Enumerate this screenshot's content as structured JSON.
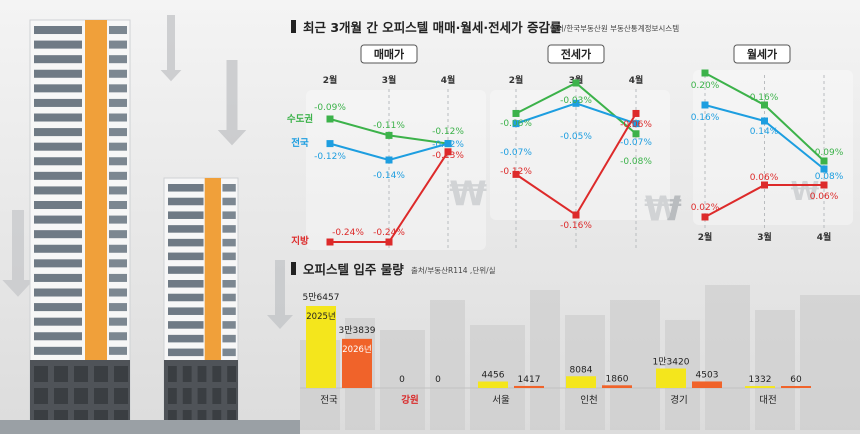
{
  "sections": {
    "price_title": "최근 3개월 간 오피스텔 매매·월세·전세가 증감률",
    "price_source": "출처/한국부동산원 부동산통계정보시스템",
    "supply_title": "오피스텔 입주 물량",
    "supply_source": "출처/부동산R114 ,단위/실"
  },
  "colors": {
    "metro": "#3cb24a",
    "national": "#1d9ee0",
    "local": "#dd2a2a",
    "bar2025": "#f4e61c",
    "bar2026": "#f0632a",
    "highlight_region": "#d92b2b"
  },
  "chart_data": [
    {
      "type": "line",
      "title": "매매가",
      "categories": [
        "2월",
        "3월",
        "4월"
      ],
      "series": [
        {
          "name": "수도권",
          "values": [
            -0.09,
            -0.11,
            -0.12
          ],
          "labels": [
            "-0.09%",
            "-0.11%",
            "-0.12%"
          ]
        },
        {
          "name": "전국",
          "values": [
            -0.12,
            -0.14,
            -0.12
          ],
          "labels": [
            "-0.12%",
            "-0.14%",
            "-0.12%"
          ]
        },
        {
          "name": "지방",
          "values": [
            -0.24,
            -0.24,
            -0.13
          ],
          "labels": [
            "-0.24%",
            "-0.24%",
            "-0.13%"
          ]
        }
      ]
    },
    {
      "type": "line",
      "title": "전세가",
      "categories": [
        "2월",
        "3월",
        "4월"
      ],
      "series": [
        {
          "name": "수도권",
          "values": [
            -0.06,
            -0.03,
            -0.08
          ],
          "labels": [
            "-0.06%",
            "-0.03%",
            "-0.08%"
          ]
        },
        {
          "name": "전국",
          "values": [
            -0.07,
            -0.05,
            -0.07
          ],
          "labels": [
            "-0.07%",
            "-0.05%",
            "-0.07%"
          ]
        },
        {
          "name": "지방",
          "values": [
            -0.12,
            -0.16,
            -0.06
          ],
          "labels": [
            "-0.12%",
            "-0.16%",
            "-0.06%"
          ]
        }
      ]
    },
    {
      "type": "line",
      "title": "월세가",
      "categories": [
        "2월",
        "3월",
        "4월"
      ],
      "series": [
        {
          "name": "수도권",
          "values": [
            0.2,
            0.16,
            0.09
          ],
          "labels": [
            "0.20%",
            "0.16%",
            "0.09%"
          ]
        },
        {
          "name": "전국",
          "values": [
            0.16,
            0.14,
            0.08
          ],
          "labels": [
            "0.16%",
            "0.14%",
            "0.08%"
          ]
        },
        {
          "name": "지방",
          "values": [
            0.02,
            0.06,
            0.06
          ],
          "labels": [
            "0.02%",
            "0.06%",
            "0.06%"
          ]
        }
      ]
    },
    {
      "type": "bar",
      "title": "오피스텔 입주 물량",
      "categories": [
        "전국",
        "강원",
        "서울",
        "인천",
        "경기",
        "대전"
      ],
      "series": [
        {
          "name": "2025년",
          "values": [
            56457,
            0,
            4456,
            8084,
            13420,
            1332
          ],
          "labels": [
            "5만6457",
            "0",
            "4456",
            "8084",
            "1만3420",
            "1332"
          ]
        },
        {
          "name": "2026년",
          "values": [
            33839,
            0,
            1417,
            1860,
            4503,
            60
          ],
          "labels": [
            "3만3839",
            "0",
            "1417",
            "1860",
            "4503",
            "60"
          ]
        }
      ]
    }
  ]
}
